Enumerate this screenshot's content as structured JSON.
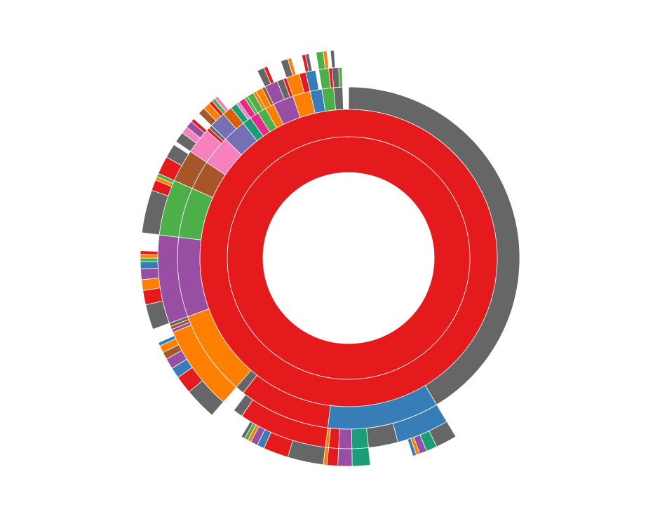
{
  "chart_data": {
    "type": "sunburst",
    "root": {
      "value": 360,
      "color": "#e41a1c",
      "children": [
        {
          "value": 360,
          "color": "#e41a1c",
          "children": [
            {
              "value": 149,
              "color": "#666666"
            },
            {
              "value": 38,
              "color": "#377eb8",
              "children": [
                {
                  "value": 16,
                  "color": "#377eb8",
                  "children": [
                    {
                      "value": 6,
                      "color": "#666666"
                    },
                    {
                      "value": 3,
                      "color": "#1b9e77"
                    },
                    {
                      "value": 2,
                      "color": "#984ea3"
                    },
                    {
                      "value": 1,
                      "color": "#ff7f00"
                    },
                    {
                      "value": 1,
                      "color": "#377eb8"
                    }
                  ]
                },
                {
                  "value": 9,
                  "color": "#666666"
                },
                {
                  "value": 5,
                  "color": "#1b9e77",
                  "children": [
                    {
                      "value": 5,
                      "color": "#1b9e77"
                    }
                  ]
                },
                {
                  "value": 4,
                  "color": "#984ea3",
                  "children": [
                    {
                      "value": 4,
                      "color": "#984ea3"
                    }
                  ]
                },
                {
                  "value": 3,
                  "color": "#e41a1c",
                  "children": [
                    {
                      "value": 3,
                      "color": "#e41a1c"
                    }
                  ]
                },
                {
                  "value": 1,
                  "color": "#ff7f00",
                  "children": [
                    {
                      "value": 1,
                      "color": "#ff7f00"
                    }
                  ]
                }
              ]
            },
            {
              "value": 31,
              "color": "#e41a1c",
              "children": [
                {
                  "value": 27,
                  "color": "#e41a1c",
                  "children": [
                    {
                      "value": 10,
                      "color": "#666666"
                    },
                    {
                      "value": 7,
                      "color": "#e41a1c"
                    },
                    {
                      "value": 2,
                      "color": "#377eb8"
                    },
                    {
                      "value": 2,
                      "color": "#984ea3"
                    },
                    {
                      "value": 1,
                      "color": "#ff7f00"
                    },
                    {
                      "value": 1,
                      "color": "#4daf4a"
                    },
                    {
                      "value": 1,
                      "color": "#666666"
                    }
                  ]
                },
                {
                  "value": 3,
                  "color": "#666666"
                }
              ]
            },
            {
              "value": 3,
              "color": "#666666"
            },
            {
              "value": 29,
              "color": "#ff7f00",
              "children": [
                {
                  "value": 26,
                  "color": "#ff7f00",
                  "children": [
                    {
                      "value": 9,
                      "color": "#666666"
                    },
                    {
                      "value": 5,
                      "color": "#e41a1c"
                    },
                    {
                      "value": 3,
                      "color": "#377eb8"
                    },
                    {
                      "value": 3,
                      "color": "#984ea3"
                    },
                    {
                      "value": 2,
                      "color": "#a65628"
                    },
                    {
                      "value": 2,
                      "color": "#ff7f00"
                    },
                    {
                      "value": 1,
                      "color": "#377eb8"
                    }
                  ]
                },
                {
                  "value": 1,
                  "color": "#984ea3"
                },
                {
                  "value": 1,
                  "color": "#a65628"
                },
                {
                  "value": 1,
                  "color": "#666666"
                }
              ]
            },
            {
              "value": 27,
              "color": "#984ea3",
              "children": [
                {
                  "value": 27,
                  "color": "#984ea3",
                  "children": [
                    {
                      "value": 7,
                      "color": "#666666"
                    },
                    {
                      "value": 4,
                      "color": "#e41a1c"
                    },
                    {
                      "value": 3,
                      "color": "#ff7f00"
                    },
                    {
                      "value": 3,
                      "color": "#984ea3"
                    },
                    {
                      "value": 2,
                      "color": "#377eb8"
                    },
                    {
                      "value": 1,
                      "color": "#4daf4a"
                    },
                    {
                      "value": 1,
                      "color": "#ff7f00"
                    },
                    {
                      "value": 1,
                      "color": "#e41a1c"
                    }
                  ]
                }
              ]
            },
            {
              "value": 17,
              "color": "#4daf4a",
              "children": [
                {
                  "value": 17,
                  "color": "#4daf4a",
                  "children": [
                    {
                      "value": 12,
                      "color": "#666666"
                    },
                    {
                      "value": 3,
                      "color": "#e41a1c"
                    },
                    {
                      "value": 1,
                      "color": "#ff7f00"
                    },
                    {
                      "value": 1,
                      "color": "#4daf4a"
                    }
                  ]
                }
              ]
            },
            {
              "value": 10,
              "color": "#a65628",
              "children": [
                {
                  "value": 10,
                  "color": "#a65628",
                  "children": [
                    {
                      "value": 5,
                      "color": "#e41a1c"
                    },
                    {
                      "value": 4,
                      "color": "#666666"
                    }
                  ]
                }
              ]
            },
            {
              "value": 10,
              "color": "#f781bf",
              "children": [
                {
                  "value": 8,
                  "color": "#f781bf",
                  "children": [
                    {
                      "value": 3,
                      "color": "#666666"
                    },
                    {
                      "value": 2,
                      "color": "#f781bf"
                    },
                    {
                      "value": 2,
                      "color": "#984ea3"
                    },
                    {
                      "value": 1,
                      "color": "#e41a1c"
                    }
                  ]
                },
                {
                  "value": 1,
                  "color": "#e41a1c"
                },
                {
                  "value": 1,
                  "color": "#666666"
                }
              ]
            },
            {
              "value": 8,
              "color": "#7570b3",
              "children": [
                {
                  "value": 5,
                  "color": "#7570b3",
                  "children": [
                    {
                      "value": 2,
                      "color": "#a65628"
                    },
                    {
                      "value": 2,
                      "color": "#ff7f00"
                    },
                    {
                      "value": 1,
                      "color": "#e41a1c"
                    }
                  ]
                },
                {
                  "value": 3,
                  "color": "#d95f02",
                  "children": [
                    {
                      "value": 1,
                      "color": "#4daf4a"
                    },
                    {
                      "value": 1,
                      "color": "#f781bf"
                    }
                  ]
                }
              ]
            },
            {
              "value": 3,
              "color": "#1b9e77",
              "children": [
                {
                  "value": 2,
                  "color": "#1b9e77"
                },
                {
                  "value": 1,
                  "color": "#f781bf"
                }
              ]
            },
            {
              "value": 3,
              "color": "#e7298a",
              "children": [
                {
                  "value": 2,
                  "color": "#e7298a"
                },
                {
                  "value": 1,
                  "color": "#4daf4a"
                }
              ]
            },
            {
              "value": 3,
              "color": "#4daf4a",
              "children": [
                {
                  "value": 2,
                  "color": "#4daf4a"
                },
                {
                  "value": 1,
                  "color": "#ff7f00"
                }
              ]
            },
            {
              "value": 3,
              "color": "#ff7f00",
              "children": [
                {
                  "value": 2,
                  "color": "#ff7f00"
                },
                {
                  "value": 1,
                  "color": "#a65628"
                }
              ]
            },
            {
              "value": 7,
              "color": "#984ea3",
              "children": [
                {
                  "value": 4,
                  "color": "#984ea3",
                  "children": [
                    {
                      "value": 2,
                      "color": "#666666"
                    },
                    {
                      "value": 1,
                      "color": "#e41a1c"
                    }
                  ]
                },
                {
                  "value": 2,
                  "color": "#666666"
                },
                {
                  "value": 1,
                  "color": "#e41a1c"
                }
              ]
            },
            {
              "value": 6,
              "color": "#ff7f00",
              "children": [
                {
                  "value": 4,
                  "color": "#ff7f00",
                  "children": [
                    {
                      "value": 2,
                      "color": "#666666"
                    },
                    {
                      "value": 1,
                      "color": "#ff7f00"
                    }
                  ]
                },
                {
                  "value": 2,
                  "color": "#e41a1c"
                }
              ]
            },
            {
              "value": 4,
              "color": "#377eb8",
              "children": [
                {
                  "value": 3,
                  "color": "#377eb8",
                  "children": [
                    {
                      "value": 1,
                      "color": "#e41a1c"
                    },
                    {
                      "value": 1,
                      "color": "#666666"
                    }
                  ]
                }
              ]
            },
            {
              "value": 4,
              "color": "#4daf4a",
              "children": [
                {
                  "value": 3,
                  "color": "#4daf4a",
                  "children": [
                    {
                      "value": 2,
                      "color": "#4daf4a"
                    },
                    {
                      "value": 1,
                      "color": "#ff7f00"
                    }
                  ]
                },
                {
                  "value": 1,
                  "color": "#e41a1c"
                }
              ]
            },
            {
              "value": 3,
              "color": "#666666",
              "children": [
                {
                  "value": 2,
                  "color": "#666666",
                  "children": [
                    {
                      "value": 1,
                      "color": "#666666"
                    }
                  ]
                },
                {
                  "value": 1,
                  "color": "#4daf4a"
                }
              ]
            }
          ]
        }
      ]
    }
  }
}
